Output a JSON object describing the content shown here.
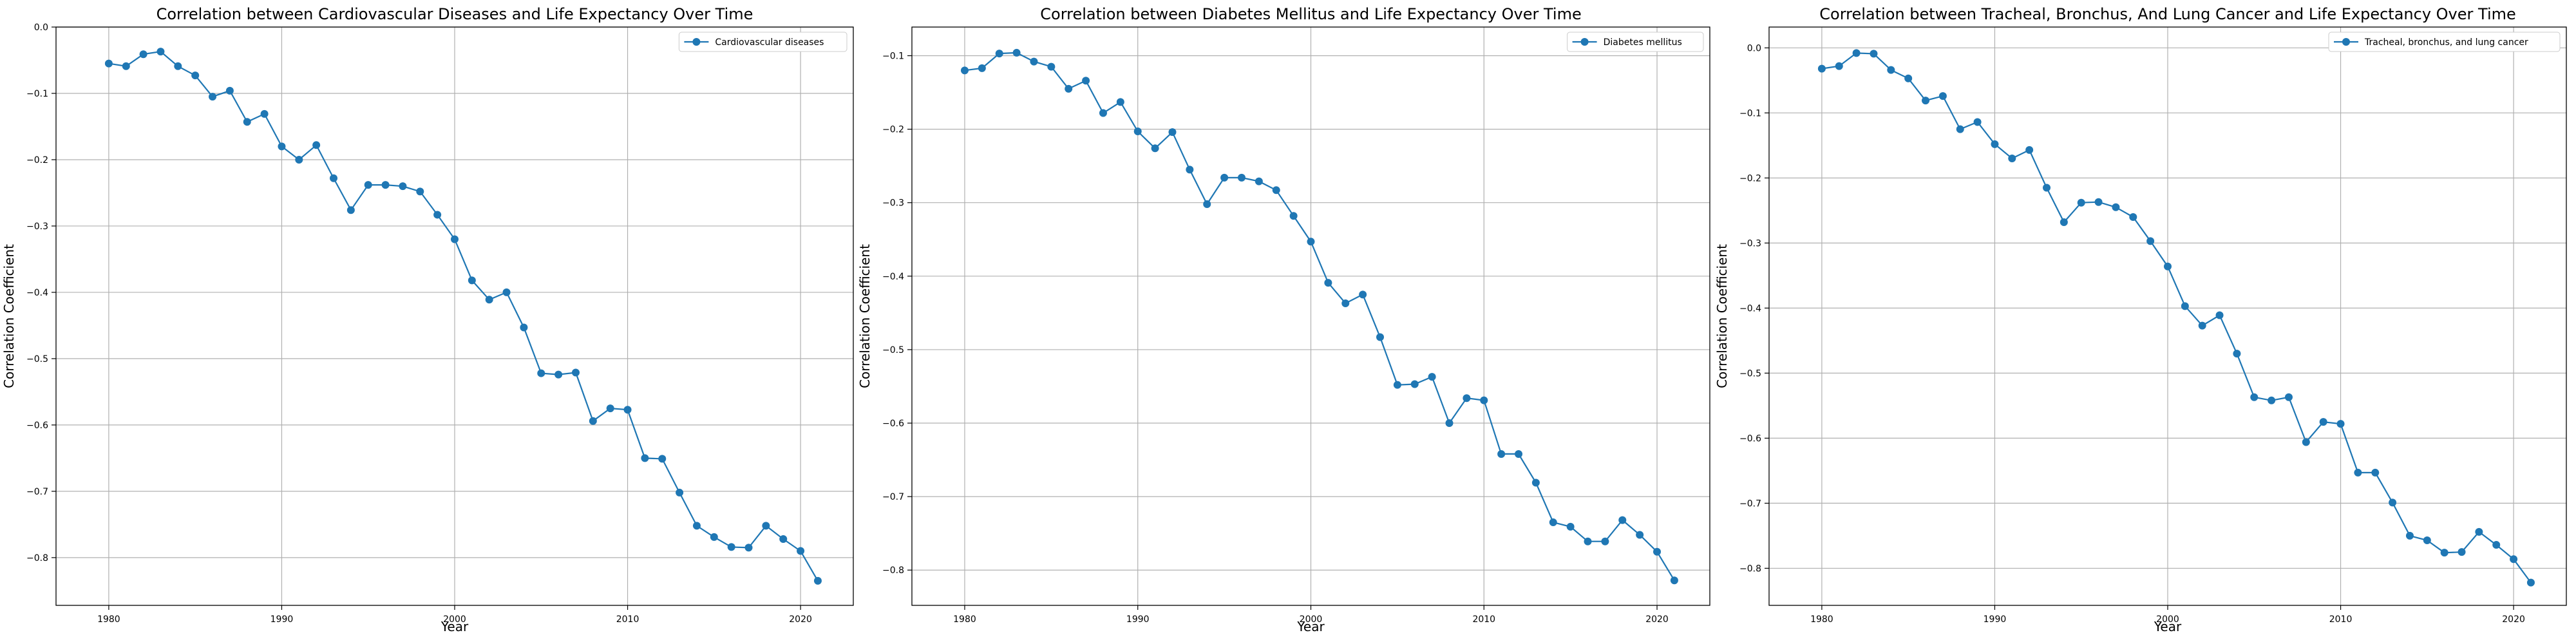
{
  "chart_data": [
    {
      "type": "line",
      "title": "Correlation between Cardiovascular Diseases and Life Expectancy Over Time",
      "xlabel": "Year",
      "ylabel": "Correlation Coefficient",
      "legend_position": "top-right",
      "grid": true,
      "color": "#1f77b4",
      "marker": "circle",
      "xlim": [
        1976.95,
        2023.05
      ],
      "ylim": [
        -0.872,
        0.0
      ],
      "xticks": [
        1980,
        1990,
        2000,
        2010,
        2020
      ],
      "yticks": [
        0.0,
        -0.1,
        -0.2,
        -0.3,
        -0.4,
        -0.5,
        -0.6,
        -0.7,
        -0.8
      ],
      "xtick_labels": [
        "1980",
        "1990",
        "2000",
        "2010",
        "2020"
      ],
      "ytick_labels": [
        "0.0",
        "−0.1",
        "−0.2",
        "−0.3",
        "−0.4",
        "−0.5",
        "−0.6",
        "−0.7",
        "−0.8"
      ],
      "series": [
        {
          "name": "Cardiovascular diseases",
          "x": [
            1980,
            1981,
            1982,
            1983,
            1984,
            1985,
            1986,
            1987,
            1988,
            1989,
            1990,
            1991,
            1992,
            1993,
            1994,
            1995,
            1996,
            1997,
            1998,
            1999,
            2000,
            2001,
            2002,
            2003,
            2004,
            2005,
            2006,
            2007,
            2008,
            2009,
            2010,
            2011,
            2012,
            2013,
            2014,
            2015,
            2016,
            2017,
            2018,
            2019,
            2020,
            2021
          ],
          "y": [
            -0.055,
            -0.059,
            -0.041,
            -0.037,
            -0.059,
            -0.073,
            -0.105,
            -0.096,
            -0.143,
            -0.131,
            -0.18,
            -0.2,
            -0.178,
            -0.228,
            -0.276,
            -0.238,
            -0.238,
            -0.24,
            -0.248,
            -0.283,
            -0.32,
            -0.382,
            -0.411,
            -0.4,
            -0.453,
            -0.522,
            -0.524,
            -0.521,
            -0.594,
            -0.575,
            -0.577,
            -0.65,
            -0.651,
            -0.702,
            -0.752,
            -0.769,
            -0.784,
            -0.785,
            -0.752,
            -0.772,
            -0.79,
            -0.835
          ]
        }
      ]
    },
    {
      "type": "line",
      "title": "Correlation between Diabetes Mellitus and Life Expectancy Over Time",
      "xlabel": "Year",
      "ylabel": "Correlation Coefficient",
      "legend_position": "top-right",
      "grid": true,
      "color": "#1f77b4",
      "marker": "circle",
      "xlim": [
        1976.95,
        2023.05
      ],
      "ylim": [
        -0.848,
        -0.061
      ],
      "xticks": [
        1980,
        1990,
        2000,
        2010,
        2020
      ],
      "yticks": [
        -0.1,
        -0.2,
        -0.3,
        -0.4,
        -0.5,
        -0.6,
        -0.7,
        -0.8
      ],
      "xtick_labels": [
        "1980",
        "1990",
        "2000",
        "2010",
        "2020"
      ],
      "ytick_labels": [
        "−0.1",
        "−0.2",
        "−0.3",
        "−0.4",
        "−0.5",
        "−0.6",
        "−0.7",
        "−0.8"
      ],
      "series": [
        {
          "name": "Diabetes mellitus",
          "x": [
            1980,
            1981,
            1982,
            1983,
            1984,
            1985,
            1986,
            1987,
            1988,
            1989,
            1990,
            1991,
            1992,
            1993,
            1994,
            1995,
            1996,
            1997,
            1998,
            1999,
            2000,
            2001,
            2002,
            2003,
            2004,
            2005,
            2006,
            2007,
            2008,
            2009,
            2010,
            2011,
            2012,
            2013,
            2014,
            2015,
            2016,
            2017,
            2018,
            2019,
            2020,
            2021
          ],
          "y": [
            -0.12,
            -0.117,
            -0.097,
            -0.096,
            -0.108,
            -0.115,
            -0.145,
            -0.134,
            -0.178,
            -0.163,
            -0.203,
            -0.226,
            -0.204,
            -0.255,
            -0.302,
            -0.266,
            -0.266,
            -0.271,
            -0.283,
            -0.318,
            -0.353,
            -0.409,
            -0.437,
            -0.425,
            -0.483,
            -0.548,
            -0.547,
            -0.537,
            -0.6,
            -0.566,
            -0.569,
            -0.642,
            -0.642,
            -0.681,
            -0.735,
            -0.741,
            -0.761,
            -0.761,
            -0.732,
            -0.752,
            -0.775,
            -0.814
          ]
        }
      ]
    },
    {
      "type": "line",
      "title": "Correlation between Tracheal, Bronchus, And Lung Cancer and Life Expectancy Over Time",
      "xlabel": "Year",
      "ylabel": "Correlation Coefficient",
      "legend_position": "top-right",
      "grid": true,
      "color": "#1f77b4",
      "marker": "circle",
      "xlim": [
        1976.95,
        2023.05
      ],
      "ylim": [
        -0.857,
        0.032
      ],
      "xticks": [
        1980,
        1990,
        2000,
        2010,
        2020
      ],
      "yticks": [
        0.0,
        -0.1,
        -0.2,
        -0.3,
        -0.4,
        -0.5,
        -0.6,
        -0.7,
        -0.8
      ],
      "xtick_labels": [
        "1980",
        "1990",
        "2000",
        "2010",
        "2020"
      ],
      "ytick_labels": [
        "0.0",
        "−0.1",
        "−0.2",
        "−0.3",
        "−0.4",
        "−0.5",
        "−0.6",
        "−0.7",
        "−0.8"
      ],
      "series": [
        {
          "name": "Tracheal, bronchus, and lung cancer",
          "x": [
            1980,
            1981,
            1982,
            1983,
            1984,
            1985,
            1986,
            1987,
            1988,
            1989,
            1990,
            1991,
            1992,
            1993,
            1994,
            1995,
            1996,
            1997,
            1998,
            1999,
            2000,
            2001,
            2002,
            2003,
            2004,
            2005,
            2006,
            2007,
            2008,
            2009,
            2010,
            2011,
            2012,
            2013,
            2014,
            2015,
            2016,
            2017,
            2018,
            2019,
            2020,
            2021
          ],
          "y": [
            -0.032,
            -0.028,
            -0.008,
            -0.009,
            -0.034,
            -0.047,
            -0.081,
            -0.074,
            -0.125,
            -0.114,
            -0.148,
            -0.17,
            -0.157,
            -0.215,
            -0.268,
            -0.238,
            -0.237,
            -0.245,
            -0.26,
            -0.297,
            -0.336,
            -0.397,
            -0.427,
            -0.411,
            -0.47,
            -0.537,
            -0.542,
            -0.537,
            -0.606,
            -0.575,
            -0.578,
            -0.653,
            -0.653,
            -0.699,
            -0.75,
            -0.757,
            -0.776,
            -0.775,
            -0.744,
            -0.764,
            -0.786,
            -0.822
          ]
        }
      ]
    }
  ]
}
